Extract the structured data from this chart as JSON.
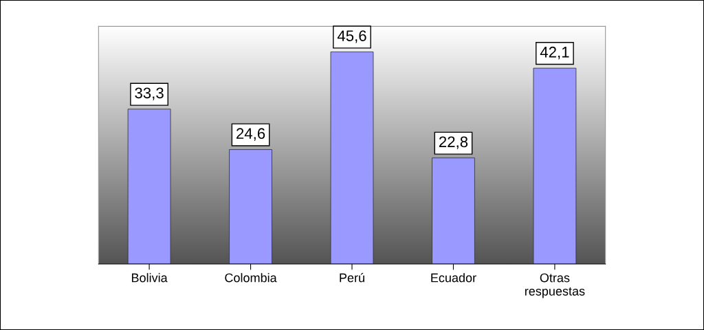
{
  "chart_data": {
    "type": "bar",
    "categories": [
      "Bolivia",
      "Colombia",
      "Perú",
      "Ecuador",
      "Otras\nrespuestas"
    ],
    "values": [
      33.3,
      24.6,
      45.6,
      22.8,
      42.1
    ],
    "value_labels": [
      "33,3",
      "24,6",
      "45,6",
      "22,8",
      "42,1"
    ],
    "color": "#9999ff"
  }
}
